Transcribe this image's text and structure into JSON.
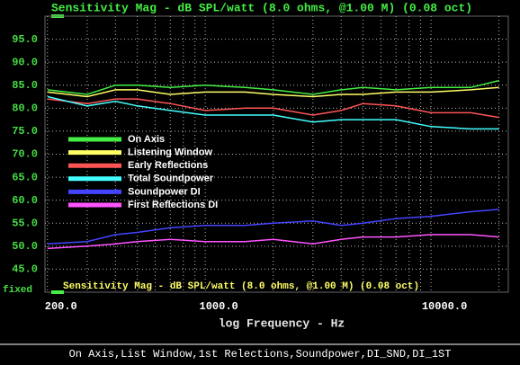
{
  "chart_data": {
    "type": "line",
    "title": "Sensitivity Mag - dB SPL/watt (8.0 ohms, @1.00 M) (0.08 oct)",
    "x_label": "log Frequency - Hz",
    "y_mode": "fixed",
    "footer": "On Axis,List Window,1st Relections,Soundpower,DI_SND,DI_1ST",
    "x_scale": "log",
    "grid": true,
    "legend": "upper left",
    "xlim": [
      195,
      22000
    ],
    "ylim": [
      40,
      100
    ],
    "xticks": [
      {
        "value": 200,
        "label": "200.0"
      },
      {
        "value": 1000,
        "label": "1000.0"
      },
      {
        "value": 10000,
        "label": "10000.0"
      }
    ],
    "x_grid": [
      300,
      400,
      500,
      600,
      700,
      800,
      900,
      2000,
      3000,
      4000,
      5000,
      6000,
      7000,
      8000,
      9000,
      20000
    ],
    "yticks": [
      {
        "value": 95,
        "label": "95.0"
      },
      {
        "value": 90,
        "label": "90.0"
      },
      {
        "value": 85,
        "label": "85.0"
      },
      {
        "value": 80,
        "label": "80.0"
      },
      {
        "value": 75,
        "label": "75.0"
      },
      {
        "value": 70,
        "label": "70.0"
      },
      {
        "value": 65,
        "label": "65.0"
      },
      {
        "value": 60,
        "label": "60.0"
      },
      {
        "value": 55,
        "label": "55.0"
      },
      {
        "value": 50,
        "label": "50.0"
      },
      {
        "value": 45,
        "label": "45.0"
      }
    ],
    "x": [
      200,
      300,
      400,
      500,
      700,
      1000,
      1500,
      2000,
      3000,
      4000,
      5000,
      7000,
      10000,
      15000,
      20000
    ],
    "series": [
      {
        "name": "On Axis",
        "color": "#44ee44",
        "values": [
          84,
          83,
          85,
          85,
          84.5,
          85,
          84.5,
          84,
          83,
          84,
          84.5,
          84,
          84.5,
          84.5,
          86
        ]
      },
      {
        "name": "Listening Window",
        "color": "#ffff66",
        "values": [
          83.5,
          82.5,
          84,
          84,
          83,
          83.5,
          83.5,
          83,
          82.5,
          83,
          83,
          83.5,
          83.5,
          84,
          84.5
        ]
      },
      {
        "name": "Early Reflections",
        "color": "#ff5555",
        "values": [
          82,
          81,
          82,
          82,
          81,
          79.5,
          80,
          80,
          78.5,
          79.5,
          81,
          80.5,
          79,
          79,
          78
        ]
      },
      {
        "name": "Total Soundpower",
        "color": "#44ffff",
        "values": [
          82.5,
          80.5,
          81.5,
          80.5,
          79.5,
          78.5,
          78.5,
          78.5,
          77,
          77.5,
          77.5,
          77.5,
          76,
          75.5,
          75.5
        ]
      },
      {
        "name": "Soundpower DI",
        "color": "#4444ff",
        "values": [
          50.5,
          51,
          52.5,
          53,
          54,
          54.5,
          54.5,
          55,
          55.5,
          54.5,
          55,
          56,
          56.5,
          57.5,
          58
        ]
      },
      {
        "name": "First Reflections DI",
        "color": "#ff55ff",
        "values": [
          49.5,
          50,
          50.5,
          51,
          51.5,
          51,
          51,
          51.5,
          50.5,
          51.5,
          52,
          52,
          52.5,
          52.5,
          52
        ]
      }
    ]
  }
}
